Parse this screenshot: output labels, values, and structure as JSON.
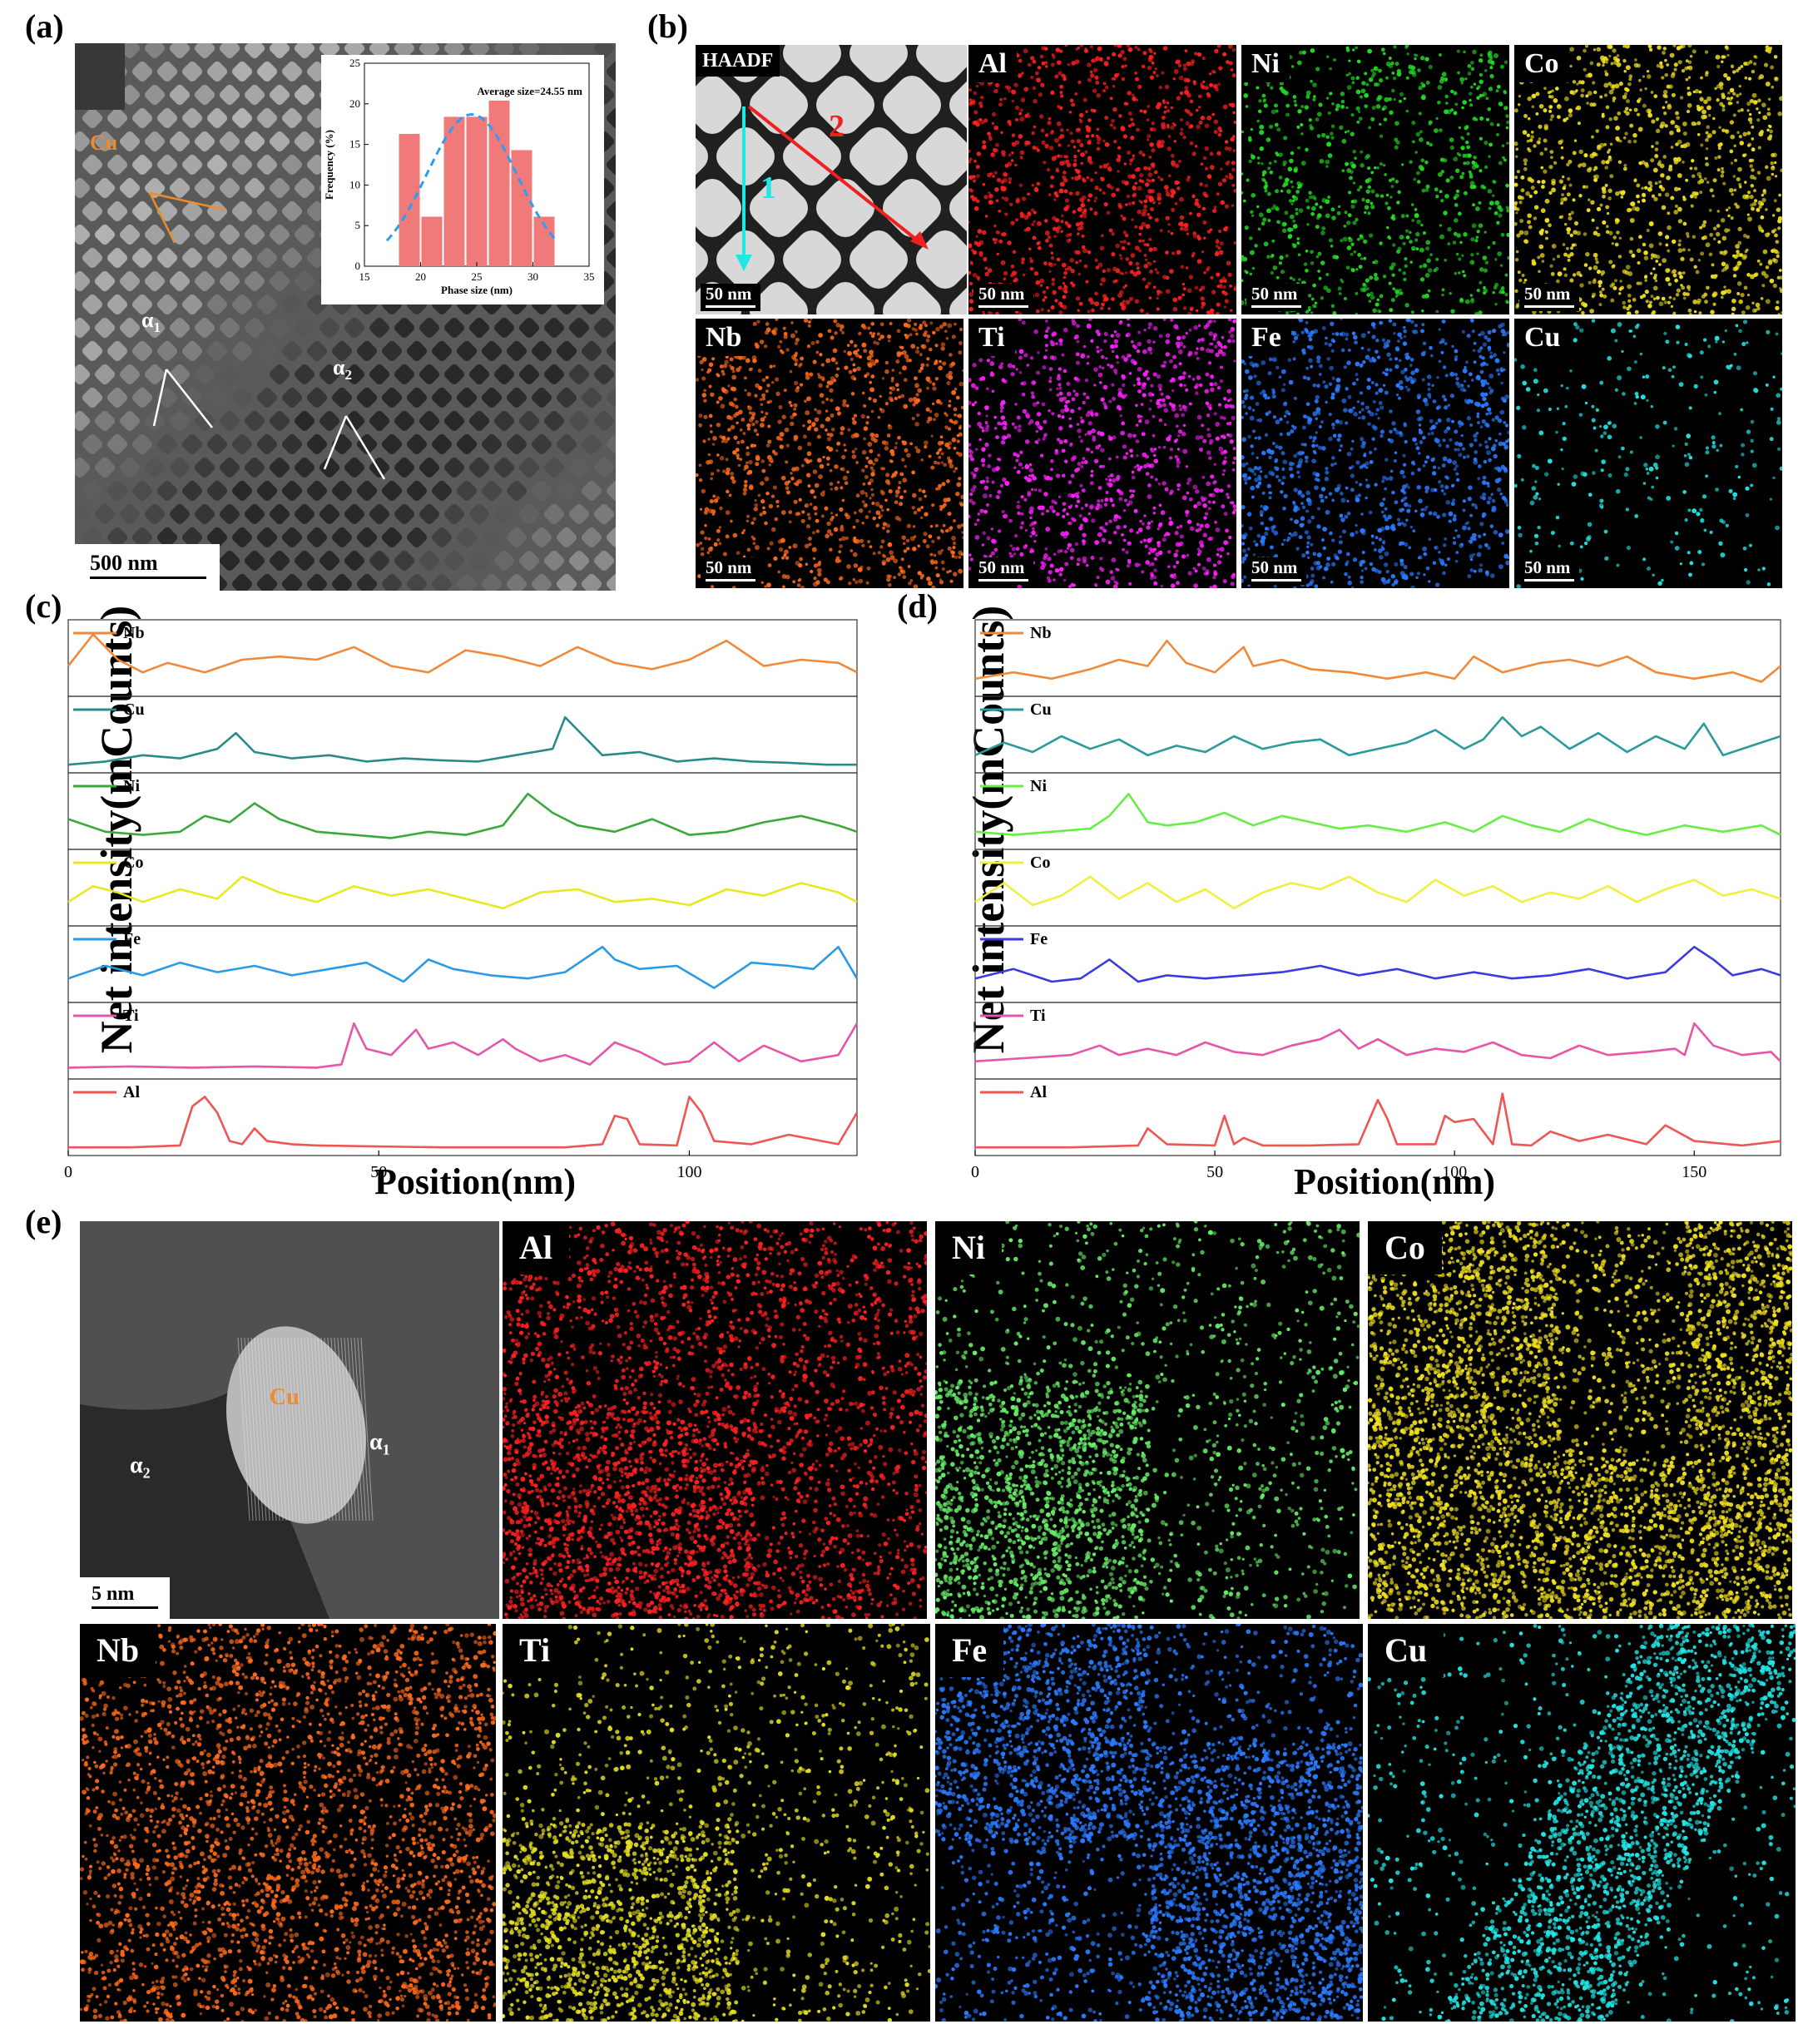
{
  "panels": {
    "a": {
      "letter": "(a)",
      "scale_bar": "500 nm",
      "cu_label": "Cu",
      "alpha1": "α",
      "alpha1_sub": "1",
      "alpha2": "α",
      "alpha2_sub": "2",
      "inset": {
        "annotation": "Average size=24.55 nm",
        "xlabel": "Phase size (nm)",
        "ylabel": "Frequency (%)"
      }
    },
    "b": {
      "letter": "(b)",
      "haadf_label": "HAADF",
      "line1_label": "1",
      "line2_label": "2",
      "scale_bar": "50 nm",
      "maps": [
        {
          "element": "Al",
          "color": "#ff2020"
        },
        {
          "element": "Ni",
          "color": "#22dd22"
        },
        {
          "element": "Co",
          "color": "#f0e020"
        },
        {
          "element": "Nb",
          "color": "#ff6a1a"
        },
        {
          "element": "Ti",
          "color": "#ff20ff"
        },
        {
          "element": "Fe",
          "color": "#2a7aff"
        },
        {
          "element": "Cu",
          "color": "#22e6e6"
        }
      ]
    },
    "c": {
      "letter": "(c)"
    },
    "d": {
      "letter": "(d)"
    },
    "e": {
      "letter": "(e)",
      "scale_bar": "5 nm",
      "cu_label": "Cu",
      "alpha1": "α",
      "alpha1_sub": "1",
      "alpha2": "α",
      "alpha2_sub": "2",
      "maps": [
        {
          "element": "Al",
          "color": "#ff2020"
        },
        {
          "element": "Ni",
          "color": "#66ee66"
        },
        {
          "element": "Co",
          "color": "#f0e020"
        },
        {
          "element": "Nb",
          "color": "#ff6a1a"
        },
        {
          "element": "Ti",
          "color": "#e6e020"
        },
        {
          "element": "Fe",
          "color": "#2a7aff"
        },
        {
          "element": "Cu",
          "color": "#22e6e6"
        }
      ]
    }
  },
  "chart_data": [
    {
      "type": "bar",
      "panel": "a-inset",
      "title": "",
      "annotation": "Average size=24.55 nm",
      "xlabel": "Phase size (nm)",
      "ylabel": "Frequency (%)",
      "x": [
        19,
        21,
        23,
        25,
        27,
        29,
        31
      ],
      "values": [
        16.3,
        6.1,
        18.4,
        18.4,
        20.4,
        14.3,
        6.1
      ],
      "fit_curve": {
        "type": "normal",
        "mean": 24.55,
        "peak": 18.7,
        "color": "#2a9df4"
      },
      "xlim": [
        15,
        35
      ],
      "ylim": [
        0,
        25
      ],
      "xticks": [
        15,
        20,
        25,
        30,
        35
      ],
      "yticks": [
        0,
        5,
        10,
        15,
        20,
        25
      ],
      "bar_color": "#f07a7a"
    },
    {
      "type": "line",
      "panel": "c",
      "xlabel": "Position(nm)",
      "ylabel": "Net intensity(mCounts)",
      "xlim": [
        0,
        127
      ],
      "xticks": [
        0,
        50,
        100
      ],
      "series": [
        {
          "name": "Nb",
          "color": "#f08a3a",
          "x": [
            0,
            4,
            8,
            12,
            16,
            22,
            28,
            34,
            40,
            46,
            52,
            58,
            64,
            70,
            76,
            82,
            88,
            94,
            100,
            106,
            112,
            118,
            124,
            127
          ],
          "values": [
            0.4,
            0.9,
            0.5,
            0.3,
            0.45,
            0.3,
            0.5,
            0.55,
            0.5,
            0.7,
            0.4,
            0.3,
            0.65,
            0.55,
            0.4,
            0.7,
            0.45,
            0.35,
            0.5,
            0.8,
            0.4,
            0.5,
            0.45,
            0.3
          ]
        },
        {
          "name": "Cu",
          "color": "#2a8a8a",
          "x": [
            0,
            6,
            12,
            18,
            24,
            27,
            30,
            36,
            42,
            48,
            54,
            60,
            66,
            72,
            78,
            80,
            82,
            86,
            92,
            98,
            104,
            110,
            116,
            122,
            127
          ],
          "values": [
            0.05,
            0.1,
            0.2,
            0.15,
            0.3,
            0.55,
            0.25,
            0.15,
            0.2,
            0.1,
            0.15,
            0.12,
            0.1,
            0.2,
            0.3,
            0.8,
            0.6,
            0.2,
            0.25,
            0.1,
            0.15,
            0.1,
            0.08,
            0.05,
            0.05
          ]
        },
        {
          "name": "Ni",
          "color": "#3aa83a",
          "x": [
            0,
            6,
            12,
            18,
            22,
            26,
            30,
            34,
            40,
            46,
            52,
            58,
            64,
            70,
            74,
            78,
            82,
            88,
            94,
            100,
            106,
            112,
            118,
            124,
            127
          ],
          "values": [
            0.4,
            0.2,
            0.15,
            0.2,
            0.45,
            0.35,
            0.65,
            0.4,
            0.2,
            0.15,
            0.1,
            0.2,
            0.15,
            0.3,
            0.8,
            0.5,
            0.3,
            0.2,
            0.4,
            0.15,
            0.2,
            0.35,
            0.45,
            0.3,
            0.2
          ]
        },
        {
          "name": "Co",
          "color": "#e8e820",
          "x": [
            0,
            4,
            8,
            12,
            18,
            24,
            28,
            34,
            40,
            46,
            52,
            58,
            64,
            70,
            76,
            82,
            88,
            94,
            100,
            106,
            112,
            118,
            124,
            127
          ],
          "values": [
            0.3,
            0.55,
            0.45,
            0.3,
            0.5,
            0.35,
            0.7,
            0.45,
            0.3,
            0.55,
            0.4,
            0.5,
            0.35,
            0.2,
            0.45,
            0.5,
            0.3,
            0.35,
            0.25,
            0.5,
            0.4,
            0.6,
            0.45,
            0.3
          ]
        },
        {
          "name": "Fe",
          "color": "#2a9ae6",
          "x": [
            0,
            6,
            12,
            18,
            24,
            30,
            36,
            42,
            48,
            54,
            58,
            62,
            68,
            74,
            80,
            86,
            88,
            92,
            98,
            104,
            110,
            116,
            120,
            124,
            127
          ],
          "values": [
            0.3,
            0.5,
            0.35,
            0.55,
            0.4,
            0.5,
            0.35,
            0.45,
            0.55,
            0.25,
            0.6,
            0.45,
            0.35,
            0.3,
            0.4,
            0.8,
            0.6,
            0.45,
            0.5,
            0.15,
            0.55,
            0.5,
            0.45,
            0.8,
            0.3
          ]
        },
        {
          "name": "Ti",
          "color": "#e655a8",
          "x": [
            0,
            10,
            20,
            30,
            40,
            44,
            46,
            48,
            52,
            56,
            58,
            62,
            66,
            70,
            72,
            76,
            80,
            84,
            88,
            92,
            96,
            100,
            104,
            108,
            112,
            118,
            124,
            127
          ],
          "values": [
            0.1,
            0.12,
            0.1,
            0.12,
            0.1,
            0.15,
            0.8,
            0.4,
            0.3,
            0.7,
            0.4,
            0.5,
            0.3,
            0.55,
            0.4,
            0.2,
            0.3,
            0.15,
            0.5,
            0.35,
            0.15,
            0.2,
            0.5,
            0.2,
            0.45,
            0.2,
            0.3,
            0.8
          ]
        },
        {
          "name": "Al",
          "color": "#ee5555",
          "x": [
            0,
            10,
            18,
            20,
            22,
            24,
            26,
            28,
            30,
            32,
            36,
            40,
            60,
            80,
            86,
            88,
            90,
            92,
            98,
            100,
            102,
            104,
            110,
            116,
            124,
            127
          ],
          "values": [
            0.05,
            0.05,
            0.08,
            0.7,
            0.85,
            0.6,
            0.15,
            0.1,
            0.35,
            0.15,
            0.1,
            0.08,
            0.05,
            0.05,
            0.1,
            0.55,
            0.5,
            0.1,
            0.08,
            0.85,
            0.6,
            0.15,
            0.1,
            0.25,
            0.1,
            0.6
          ]
        }
      ]
    },
    {
      "type": "line",
      "panel": "d",
      "xlabel": "Position(nm)",
      "ylabel": "Net intensity(mCounts)",
      "xlim": [
        0,
        168
      ],
      "xticks": [
        0,
        50,
        100,
        150
      ],
      "series": [
        {
          "name": "Nb",
          "color": "#f08a3a",
          "x": [
            0,
            8,
            16,
            24,
            30,
            36,
            40,
            44,
            50,
            56,
            58,
            64,
            70,
            78,
            86,
            94,
            100,
            104,
            110,
            118,
            124,
            130,
            136,
            142,
            150,
            158,
            164,
            168
          ],
          "values": [
            0.2,
            0.3,
            0.2,
            0.35,
            0.5,
            0.4,
            0.8,
            0.45,
            0.3,
            0.7,
            0.4,
            0.5,
            0.35,
            0.3,
            0.2,
            0.3,
            0.2,
            0.55,
            0.3,
            0.45,
            0.5,
            0.4,
            0.55,
            0.3,
            0.2,
            0.3,
            0.15,
            0.4
          ]
        },
        {
          "name": "Cu",
          "color": "#2a9a9a",
          "x": [
            0,
            6,
            12,
            18,
            24,
            30,
            36,
            42,
            48,
            54,
            60,
            66,
            72,
            78,
            84,
            90,
            96,
            102,
            106,
            110,
            114,
            118,
            124,
            130,
            136,
            142,
            148,
            152,
            156,
            162,
            168
          ],
          "values": [
            0.2,
            0.4,
            0.25,
            0.5,
            0.3,
            0.45,
            0.2,
            0.35,
            0.25,
            0.5,
            0.3,
            0.4,
            0.45,
            0.2,
            0.3,
            0.4,
            0.6,
            0.3,
            0.45,
            0.8,
            0.5,
            0.65,
            0.3,
            0.55,
            0.25,
            0.5,
            0.3,
            0.7,
            0.2,
            0.35,
            0.5
          ]
        },
        {
          "name": "Ni",
          "color": "#66ee44",
          "x": [
            0,
            8,
            16,
            24,
            28,
            32,
            36,
            40,
            46,
            52,
            58,
            64,
            70,
            76,
            82,
            90,
            98,
            104,
            110,
            116,
            122,
            128,
            134,
            140,
            148,
            156,
            164,
            168
          ],
          "values": [
            0.2,
            0.15,
            0.2,
            0.25,
            0.45,
            0.8,
            0.35,
            0.3,
            0.35,
            0.5,
            0.3,
            0.45,
            0.35,
            0.25,
            0.3,
            0.2,
            0.35,
            0.2,
            0.45,
            0.3,
            0.2,
            0.4,
            0.25,
            0.15,
            0.3,
            0.2,
            0.3,
            0.15
          ]
        },
        {
          "name": "Co",
          "color": "#f0f040",
          "x": [
            0,
            6,
            12,
            18,
            24,
            30,
            36,
            42,
            48,
            54,
            60,
            66,
            72,
            78,
            84,
            90,
            96,
            102,
            108,
            114,
            120,
            126,
            132,
            138,
            144,
            150,
            156,
            162,
            168
          ],
          "values": [
            0.3,
            0.6,
            0.25,
            0.4,
            0.7,
            0.35,
            0.6,
            0.3,
            0.5,
            0.2,
            0.45,
            0.6,
            0.5,
            0.7,
            0.45,
            0.3,
            0.65,
            0.4,
            0.55,
            0.3,
            0.45,
            0.35,
            0.55,
            0.3,
            0.5,
            0.65,
            0.4,
            0.5,
            0.35
          ]
        },
        {
          "name": "Fe",
          "color": "#3a3ae0",
          "x": [
            0,
            8,
            16,
            22,
            28,
            34,
            40,
            48,
            56,
            64,
            72,
            80,
            88,
            96,
            104,
            112,
            120,
            128,
            136,
            144,
            150,
            154,
            158,
            164,
            168
          ],
          "values": [
            0.3,
            0.45,
            0.25,
            0.3,
            0.6,
            0.25,
            0.35,
            0.3,
            0.35,
            0.4,
            0.5,
            0.35,
            0.45,
            0.3,
            0.4,
            0.3,
            0.35,
            0.45,
            0.3,
            0.4,
            0.8,
            0.6,
            0.35,
            0.45,
            0.35
          ]
        },
        {
          "name": "Ti",
          "color": "#e655a8",
          "x": [
            0,
            10,
            20,
            26,
            30,
            36,
            42,
            48,
            54,
            60,
            66,
            72,
            76,
            80,
            84,
            90,
            96,
            102,
            108,
            114,
            120,
            126,
            132,
            140,
            146,
            148,
            150,
            154,
            160,
            166,
            168
          ],
          "values": [
            0.2,
            0.25,
            0.3,
            0.45,
            0.3,
            0.4,
            0.3,
            0.5,
            0.35,
            0.3,
            0.45,
            0.55,
            0.7,
            0.4,
            0.55,
            0.3,
            0.4,
            0.35,
            0.5,
            0.3,
            0.25,
            0.45,
            0.3,
            0.35,
            0.4,
            0.3,
            0.8,
            0.45,
            0.3,
            0.35,
            0.2
          ]
        },
        {
          "name": "Al",
          "color": "#ee5555",
          "x": [
            0,
            20,
            34,
            36,
            40,
            50,
            52,
            54,
            56,
            60,
            70,
            80,
            84,
            86,
            88,
            96,
            98,
            100,
            104,
            108,
            110,
            112,
            116,
            120,
            126,
            132,
            140,
            144,
            150,
            160,
            168
          ],
          "values": [
            0.05,
            0.05,
            0.08,
            0.35,
            0.1,
            0.08,
            0.55,
            0.1,
            0.2,
            0.08,
            0.08,
            0.1,
            0.8,
            0.5,
            0.1,
            0.1,
            0.55,
            0.45,
            0.5,
            0.1,
            0.9,
            0.1,
            0.08,
            0.3,
            0.15,
            0.25,
            0.1,
            0.4,
            0.15,
            0.08,
            0.15
          ]
        }
      ]
    }
  ]
}
